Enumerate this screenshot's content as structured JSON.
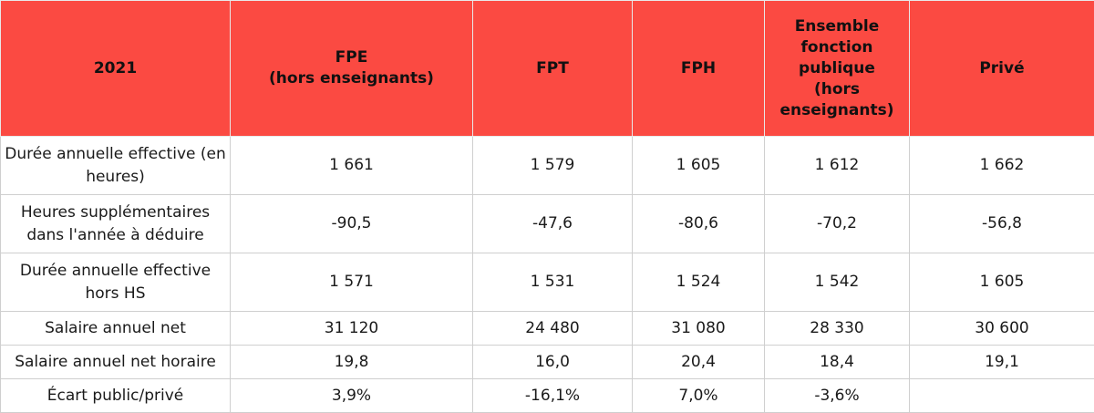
{
  "table": {
    "headers": [
      "2021",
      "FPE\n(hors enseignants)",
      "FPT",
      "FPH",
      "Ensemble\nfonction\npublique\n (hors\nenseignants)",
      "Privé"
    ],
    "rows": [
      {
        "label": "Durée annuelle effective (en heures)",
        "values": [
          "1 661",
          "1 579",
          "1 605",
          "1 612",
          "1 662"
        ]
      },
      {
        "label": "Heures supplémentaires dans l'année à déduire",
        "values": [
          "-90,5",
          "-47,6",
          "-80,6",
          "-70,2",
          "-56,8"
        ]
      },
      {
        "label": "Durée annuelle effective hors HS",
        "values": [
          "1 571",
          "1 531",
          "1 524",
          "1 542",
          "1 605"
        ]
      },
      {
        "label": "Salaire annuel net",
        "values": [
          "31 120",
          "24 480",
          "31 080",
          "28 330",
          "30 600"
        ]
      },
      {
        "label": "Salaire annuel net horaire",
        "values": [
          "19,8",
          "16,0",
          "20,4",
          "18,4",
          "19,1"
        ]
      },
      {
        "label": "Écart public/privé",
        "values": [
          "3,9%",
          "-16,1%",
          "7,0%",
          "-3,6%",
          ""
        ]
      }
    ]
  },
  "colors": {
    "header_background": "#fb4a42",
    "grid_line": "#cfcfcf"
  }
}
